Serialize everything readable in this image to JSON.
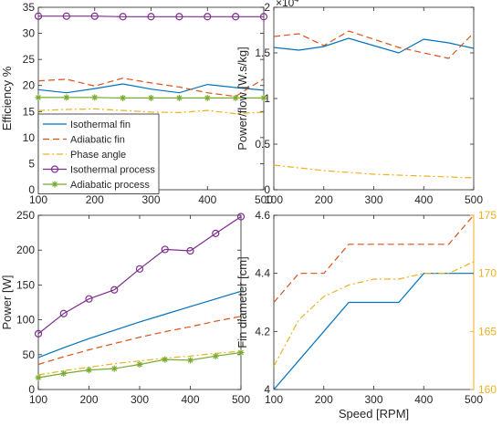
{
  "chart_data": [
    {
      "type": "line",
      "panel": "top-left",
      "ylabel": "Efficiency %",
      "xlabel": "",
      "xlim": [
        100,
        500
      ],
      "ylim": [
        0,
        35
      ],
      "xticks": [
        100,
        200,
        300,
        400,
        500
      ],
      "yticks": [
        0,
        5,
        10,
        15,
        20,
        25,
        30,
        35
      ],
      "x": [
        100,
        150,
        200,
        250,
        300,
        350,
        400,
        450,
        500
      ],
      "legend": {
        "position": "bottom-left"
      },
      "series": [
        {
          "name": "Isothermal fin",
          "color": "#0072BD",
          "style": "solid",
          "marker": "",
          "values": [
            19.2,
            18.6,
            19.4,
            20.3,
            19.3,
            18.6,
            20.2,
            19.6,
            19.1
          ]
        },
        {
          "name": "Adiabatic fin",
          "color": "#D95319",
          "style": "dashed",
          "marker": "",
          "values": [
            20.9,
            21.2,
            19.9,
            21.4,
            20.5,
            19.7,
            18.6,
            17.9,
            21.3
          ]
        },
        {
          "name": "Phase angle",
          "color": "#EDB120",
          "style": "dashdot",
          "marker": "",
          "values": [
            15.2,
            15.4,
            15.5,
            15.2,
            14.9,
            14.8,
            15.2,
            14.6,
            14.9
          ]
        },
        {
          "name": "Isothermal process",
          "color": "#7E2F8E",
          "style": "solid",
          "marker": "circle",
          "values": [
            33.3,
            33.3,
            33.3,
            33.2,
            33.2,
            33.2,
            33.2,
            33.2,
            33.2
          ]
        },
        {
          "name": "Adiabatic process",
          "color": "#77AC30",
          "style": "solid",
          "marker": "asterisk",
          "values": [
            17.7,
            17.7,
            17.7,
            17.6,
            17.6,
            17.6,
            17.6,
            17.6,
            17.6
          ]
        }
      ]
    },
    {
      "type": "line",
      "panel": "top-right",
      "ylabel": "Power/flow [W.s/kg]",
      "exponent_label": "×10",
      "exponent_power": "4",
      "xlabel": "",
      "xlim": [
        100,
        500
      ],
      "ylim": [
        0,
        2
      ],
      "xticks": [
        100,
        200,
        300,
        400,
        500
      ],
      "yticks": [
        0,
        0.5,
        1,
        1.5,
        2
      ],
      "x": [
        100,
        150,
        200,
        250,
        300,
        350,
        400,
        450,
        500
      ],
      "series": [
        {
          "color": "#0072BD",
          "style": "solid",
          "values": [
            1.56,
            1.53,
            1.57,
            1.66,
            1.58,
            1.5,
            1.65,
            1.61,
            1.55
          ]
        },
        {
          "color": "#D95319",
          "style": "dashed",
          "values": [
            1.68,
            1.71,
            1.58,
            1.74,
            1.65,
            1.56,
            1.5,
            1.44,
            1.72
          ]
        },
        {
          "color": "#EDB120",
          "style": "dashdot",
          "values": [
            0.27,
            0.24,
            0.21,
            0.19,
            0.17,
            0.16,
            0.15,
            0.14,
            0.13
          ]
        }
      ]
    },
    {
      "type": "line",
      "panel": "bottom-left",
      "ylabel": "Power [W]",
      "xlabel": "",
      "xlim": [
        100,
        500
      ],
      "ylim": [
        0,
        250
      ],
      "xticks": [
        100,
        200,
        300,
        400,
        500
      ],
      "yticks": [
        0,
        50,
        100,
        150,
        200,
        250
      ],
      "x": [
        100,
        150,
        200,
        250,
        300,
        350,
        400,
        450,
        500
      ],
      "series": [
        {
          "color": "#0072BD",
          "style": "solid",
          "marker": "",
          "values": [
            46,
            60,
            73,
            85,
            97,
            108,
            119,
            130,
            141
          ]
        },
        {
          "color": "#D95319",
          "style": "dashed",
          "marker": "",
          "values": [
            36,
            47,
            57,
            66,
            75,
            83,
            90,
            98,
            105
          ]
        },
        {
          "color": "#EDB120",
          "style": "dashdot",
          "marker": "",
          "values": [
            21,
            27,
            32,
            37,
            41,
            45,
            48,
            52,
            55
          ]
        },
        {
          "color": "#7E2F8E",
          "style": "solid",
          "marker": "circle",
          "values": [
            80,
            109,
            130,
            143,
            173,
            201,
            199,
            224,
            248
          ]
        },
        {
          "color": "#77AC30",
          "style": "solid",
          "marker": "asterisk",
          "values": [
            17,
            23,
            28,
            30,
            36,
            43,
            42,
            48,
            53
          ]
        }
      ]
    },
    {
      "type": "line",
      "panel": "bottom-right",
      "ylabel": "Fin diameter [cm]",
      "y2label": "",
      "xlabel": "Speed [RPM]",
      "xlim": [
        100,
        500
      ],
      "ylim": [
        4,
        4.6
      ],
      "y2lim": [
        160,
        175
      ],
      "xticks": [
        100,
        200,
        300,
        400,
        500
      ],
      "yticks": [
        "4",
        "4.2",
        "4.4",
        "4.6"
      ],
      "y2ticks": [
        160,
        165,
        170,
        175
      ],
      "y2color": "#EDB120",
      "x": [
        100,
        150,
        200,
        250,
        300,
        350,
        400,
        450,
        500
      ],
      "series": [
        {
          "color": "#0072BD",
          "style": "solid",
          "axis": "left",
          "values": [
            4.0,
            4.1,
            4.2,
            4.3,
            4.3,
            4.3,
            4.4,
            4.4,
            4.4
          ]
        },
        {
          "color": "#D95319",
          "style": "dashed",
          "axis": "left",
          "values": [
            4.3,
            4.4,
            4.4,
            4.5,
            4.5,
            4.5,
            4.5,
            4.5,
            4.6
          ]
        },
        {
          "color": "#EDB120",
          "style": "dashdot",
          "axis": "right",
          "values": [
            162,
            166,
            168,
            169,
            169.5,
            169.5,
            170,
            170,
            171
          ]
        }
      ]
    }
  ]
}
